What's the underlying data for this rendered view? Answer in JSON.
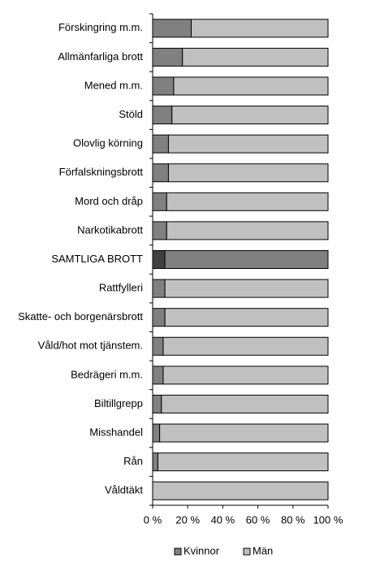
{
  "chart_data": {
    "type": "stacked-bar-horizontal",
    "categories": [
      "Förskingring m.m.",
      "Allmänfarliga brott",
      "Mened m.m.",
      "Stöld",
      "Olovlig körning",
      "Förfalskningsbrott",
      "Mord och dråp",
      "Narkotikabrott",
      "SAMTLIGA BROTT",
      "Rattfylleri",
      "Skatte- och borgenärsbrott",
      "Våld/hot mot tjänstem.",
      "Bedrägeri m.m.",
      "Biltillgrepp",
      "Misshandel",
      "Rån",
      "Våldtäkt"
    ],
    "series": [
      {
        "name": "Kvinnor",
        "color": "#808080",
        "values": [
          22,
          17,
          12,
          11,
          9,
          9,
          8,
          8,
          7,
          7,
          7,
          6,
          6,
          5,
          4,
          3,
          0
        ],
        "colors": [
          "#808080",
          "#808080",
          "#808080",
          "#808080",
          "#808080",
          "#808080",
          "#808080",
          "#808080",
          "#404040",
          "#808080",
          "#808080",
          "#808080",
          "#808080",
          "#808080",
          "#808080",
          "#808080",
          "#808080"
        ]
      },
      {
        "name": "Män",
        "color": "#c0c0c0",
        "values": [
          78,
          83,
          88,
          89,
          91,
          91,
          92,
          92,
          93,
          93,
          93,
          94,
          94,
          95,
          96,
          97,
          100
        ],
        "colors": [
          "#c0c0c0",
          "#c0c0c0",
          "#c0c0c0",
          "#c0c0c0",
          "#c0c0c0",
          "#c0c0c0",
          "#c0c0c0",
          "#c0c0c0",
          "#808080",
          "#c0c0c0",
          "#c0c0c0",
          "#c0c0c0",
          "#c0c0c0",
          "#c0c0c0",
          "#c0c0c0",
          "#c0c0c0",
          "#c0c0c0"
        ]
      }
    ],
    "xlim": [
      0,
      100
    ],
    "xticks": [
      {
        "value": 0,
        "label": "0 %"
      },
      {
        "value": 20,
        "label": "20 %"
      },
      {
        "value": 40,
        "label": "40 %"
      },
      {
        "value": 60,
        "label": "60 %"
      },
      {
        "value": 80,
        "label": "80 %"
      },
      {
        "value": 100,
        "label": "100 %"
      }
    ],
    "grid": false,
    "legend": "bottom"
  }
}
